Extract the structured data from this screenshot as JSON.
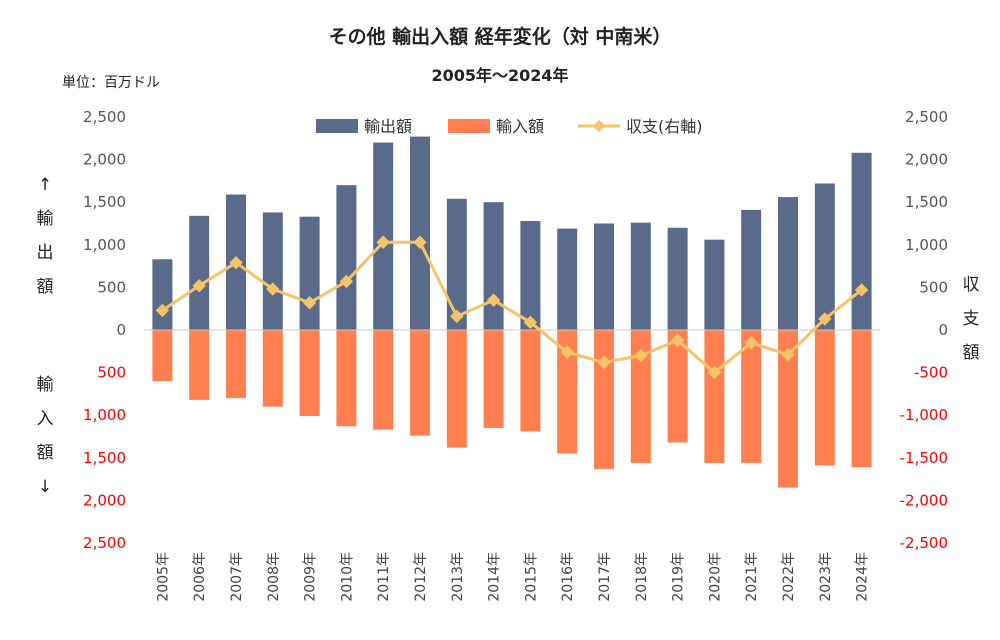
{
  "chart_data": {
    "type": "bar",
    "title": "その他 輸出入額 経年変化（対 中南米）",
    "subtitle": "2005年～2024年",
    "unit": "単位：百万ドル",
    "categories": [
      "2005年",
      "2006年",
      "2007年",
      "2008年",
      "2009年",
      "2010年",
      "2011年",
      "2012年",
      "2013年",
      "2014年",
      "2015年",
      "2016年",
      "2017年",
      "2018年",
      "2019年",
      "2020年",
      "2021年",
      "2022年",
      "2023年",
      "2024年"
    ],
    "series": [
      {
        "name": "輸出額",
        "type": "bar",
        "color": "#5a6a8a",
        "values": [
          830,
          1340,
          1590,
          1380,
          1330,
          1700,
          2200,
          2270,
          1540,
          1500,
          1280,
          1190,
          1250,
          1260,
          1200,
          1060,
          1410,
          1560,
          1720,
          2080
        ]
      },
      {
        "name": "輸入額",
        "type": "bar",
        "color": "#ff7f50",
        "values": [
          600,
          820,
          800,
          900,
          1010,
          1130,
          1170,
          1240,
          1380,
          1150,
          1190,
          1450,
          1630,
          1560,
          1320,
          1560,
          1560,
          1850,
          1590,
          1610
        ]
      },
      {
        "name": "収支(右軸)",
        "type": "line",
        "color": "#f5c469",
        "values": [
          230,
          520,
          790,
          480,
          320,
          570,
          1030,
          1030,
          160,
          350,
          90,
          -260,
          -380,
          -300,
          -120,
          -500,
          -150,
          -290,
          130,
          470
        ]
      }
    ],
    "y_left": {
      "ylim": [
        -2500,
        2500
      ],
      "ticks": [
        2500,
        2000,
        1500,
        1000,
        500,
        0,
        500,
        1000,
        1500,
        2000,
        2500
      ]
    },
    "y_right": {
      "ylim": [
        -2500,
        2500
      ],
      "ticks": [
        "2,500",
        "2,000",
        "1,500",
        "1,000",
        "500",
        "0",
        "-500",
        "-1,000",
        "-1,500",
        "-2,000",
        "-2,500"
      ]
    },
    "left_axis_labels": {
      "upper": [
        "↑",
        "輸",
        "出",
        "額"
      ],
      "lower": [
        "輸",
        "入",
        "額",
        "↓"
      ]
    },
    "right_axis_label": [
      "収",
      "支",
      "額"
    ],
    "legend_position": "top",
    "grid": false,
    "colors": {
      "export": "#5a6a8a",
      "import": "#ff7f50",
      "balance": "#f5c469",
      "negative_tick": "#ff0000",
      "positive_tick": "#555555"
    }
  }
}
